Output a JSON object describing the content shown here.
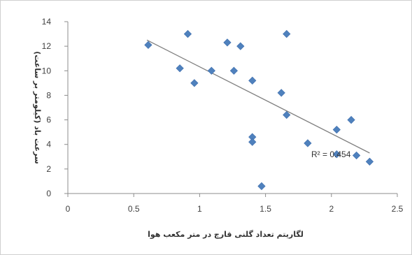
{
  "chart_data": {
    "type": "scatter",
    "title": "",
    "xlabel": "لگاریتم تعداد گلنی قارچ در متر مکعب هوا",
    "ylabel": "سرعت باد (کیلومتر بر ساعت)",
    "xlim": [
      0,
      2.5
    ],
    "ylim": [
      0,
      14
    ],
    "xticks": [
      "0",
      "0.5",
      "1",
      "1.5",
      "2",
      "2.5"
    ],
    "yticks": [
      "0",
      "2",
      "4",
      "6",
      "8",
      "10",
      "12",
      "14"
    ],
    "grid": false,
    "legend": "none",
    "marker_color": "#4f81bd",
    "trendline_color": "#7f7f7f",
    "points": [
      {
        "x": 0.61,
        "y": 12.1
      },
      {
        "x": 0.85,
        "y": 10.2
      },
      {
        "x": 0.91,
        "y": 13.0
      },
      {
        "x": 0.96,
        "y": 9.0
      },
      {
        "x": 1.09,
        "y": 10.0
      },
      {
        "x": 1.21,
        "y": 12.3
      },
      {
        "x": 1.26,
        "y": 10.0
      },
      {
        "x": 1.31,
        "y": 12.0
      },
      {
        "x": 1.4,
        "y": 9.2
      },
      {
        "x": 1.4,
        "y": 4.6
      },
      {
        "x": 1.4,
        "y": 4.2
      },
      {
        "x": 1.47,
        "y": 0.6
      },
      {
        "x": 1.62,
        "y": 8.2
      },
      {
        "x": 1.66,
        "y": 13.0
      },
      {
        "x": 1.66,
        "y": 6.4
      },
      {
        "x": 1.82,
        "y": 4.1
      },
      {
        "x": 2.04,
        "y": 5.2
      },
      {
        "x": 2.04,
        "y": 3.2
      },
      {
        "x": 2.15,
        "y": 6.0
      },
      {
        "x": 2.19,
        "y": 3.1
      },
      {
        "x": 2.29,
        "y": 2.6
      }
    ],
    "trendline": {
      "x": [
        0.6,
        2.29
      ],
      "y": [
        12.5,
        3.3
      ]
    },
    "annotation": "R² = 0.454"
  }
}
